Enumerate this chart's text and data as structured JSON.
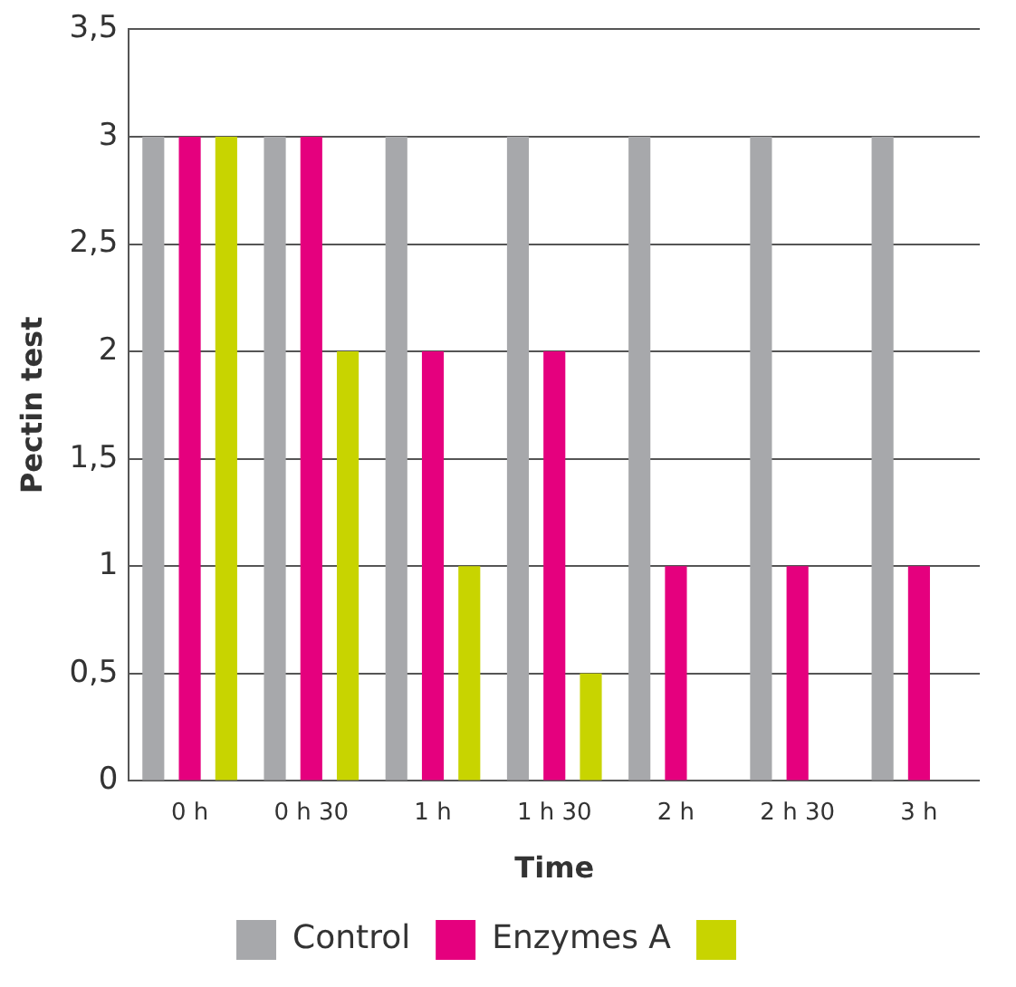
{
  "chart_data": {
    "type": "bar",
    "xlabel": "Time",
    "ylabel": "Pectin test",
    "categories": [
      "0 h",
      "0 h 30",
      "1 h",
      "1 h 30",
      "2 h",
      "2 h 30",
      "3 h"
    ],
    "series": [
      {
        "name": "Control",
        "color": "#a7a8ab",
        "values": [
          3,
          3,
          3,
          3,
          3,
          3,
          3
        ]
      },
      {
        "name": "Enzymes A",
        "color": "#e5007e",
        "values": [
          3,
          3,
          2,
          2,
          1,
          1,
          1
        ]
      },
      {
        "color": "#c8d400",
        "values": [
          3,
          2,
          1,
          0.5,
          0,
          0,
          0
        ]
      }
    ],
    "ylim": [
      0,
      3.5
    ],
    "yticks": [
      0,
      {
        "value": 0.5,
        "label": "0,5"
      },
      1,
      {
        "value": 1.5,
        "label": "1,5"
      },
      2,
      {
        "value": 2.5,
        "label": "2,5"
      },
      3,
      {
        "value": 3.5,
        "label": "3,5"
      }
    ],
    "grid": "y",
    "legend": "bottom"
  }
}
